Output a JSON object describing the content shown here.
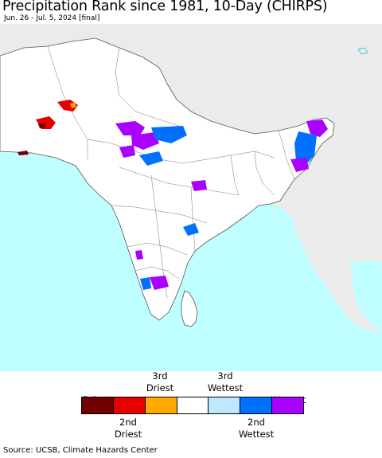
{
  "title": "Precipitation Rank since 1981, 10-Day (CHIRPS)",
  "subtitle": "Jun. 26 - Jul. 5, 2024 [final]",
  "colors": {
    "ocean": "#bfffff",
    "land_outside": "#ebebeb",
    "land_region": "#ffffff",
    "border": "#555555"
  },
  "legend": {
    "top_labels": [
      {
        "line1": "",
        "line2": "Driest"
      },
      {
        "line1": "3rd",
        "line2": "Driest"
      },
      {
        "line1": "3rd",
        "line2": "Wettest"
      },
      {
        "line1": "",
        "line2": "Wettest"
      }
    ],
    "bottom_labels": [
      {
        "line1": "2nd",
        "line2": "Driest"
      },
      {
        "line1": "2nd",
        "line2": "Wettest"
      }
    ],
    "swatches": [
      "#730000",
      "#e60000",
      "#ffaa00",
      "#ffffff",
      "#bee8ff",
      "#0070ff",
      "#aa00ff"
    ]
  },
  "source": "Source: UCSB, Climate Hazards Center"
}
